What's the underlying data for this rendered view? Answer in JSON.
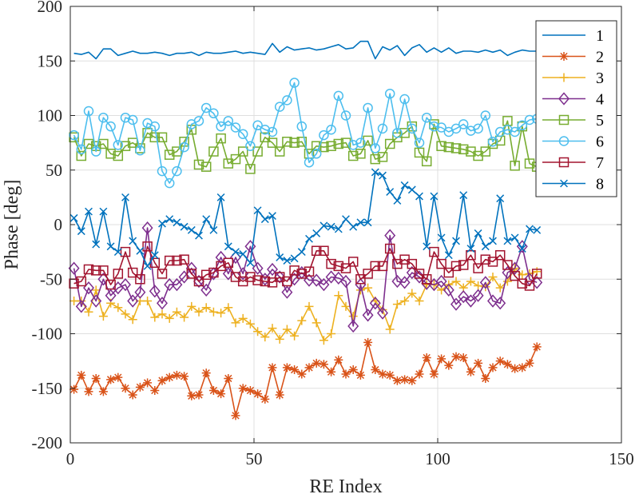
{
  "chart_data": {
    "type": "line",
    "title": "",
    "xlabel": "RE Index",
    "ylabel": "Phase [deg]",
    "xlim": [
      0,
      150
    ],
    "ylim": [
      -200,
      200
    ],
    "xticks": [
      0,
      50,
      100,
      150
    ],
    "yticks": [
      -200,
      -150,
      -100,
      -50,
      0,
      50,
      100,
      150,
      200
    ],
    "grid": true,
    "legend_position": "top-right",
    "series": [
      {
        "name": "1",
        "color": "#0072BD",
        "marker": "none",
        "x": [
          1,
          3,
          5,
          7,
          9,
          11,
          13,
          15,
          17,
          19,
          21,
          23,
          25,
          27,
          29,
          31,
          33,
          35,
          37,
          39,
          41,
          43,
          45,
          47,
          49,
          51,
          53,
          55,
          57,
          59,
          61,
          63,
          65,
          67,
          69,
          71,
          73,
          75,
          77,
          79,
          81,
          83,
          85,
          87,
          89,
          91,
          93,
          95,
          97,
          99,
          101,
          103,
          105,
          107,
          109,
          111,
          113,
          115,
          117,
          119,
          121,
          123,
          125,
          127
        ],
        "values": [
          157,
          156,
          158,
          152,
          161,
          161,
          155,
          157,
          159,
          157,
          157,
          158,
          157,
          155,
          157,
          157,
          158,
          155,
          158,
          157,
          157,
          158,
          159,
          157,
          158,
          157,
          156,
          166,
          158,
          163,
          160,
          161,
          162,
          160,
          161,
          163,
          165,
          161,
          162,
          168,
          168,
          152,
          163,
          160,
          164,
          155,
          162,
          165,
          158,
          162,
          158,
          162,
          157,
          159,
          159,
          158,
          160,
          158,
          160,
          155,
          158,
          160,
          159,
          159
        ]
      },
      {
        "name": "2",
        "color": "#D95319",
        "marker": "asterisk",
        "x": [
          1,
          3,
          5,
          7,
          9,
          11,
          13,
          15,
          17,
          19,
          21,
          23,
          25,
          27,
          29,
          31,
          33,
          35,
          37,
          39,
          41,
          43,
          45,
          47,
          49,
          51,
          53,
          55,
          57,
          59,
          61,
          63,
          65,
          67,
          69,
          71,
          73,
          75,
          77,
          79,
          81,
          83,
          85,
          87,
          89,
          91,
          93,
          95,
          97,
          99,
          101,
          103,
          105,
          107,
          109,
          111,
          113,
          115,
          117,
          119,
          121,
          123,
          125,
          127
        ],
        "values": [
          -151,
          -138,
          -153,
          -141,
          -153,
          -142,
          -140,
          -150,
          -156,
          -149,
          -145,
          -152,
          -143,
          -140,
          -138,
          -139,
          -157,
          -156,
          -136,
          -152,
          -155,
          -141,
          -175,
          -150,
          -152,
          -155,
          -160,
          -131,
          -156,
          -131,
          -133,
          -137,
          -131,
          -127,
          -128,
          -135,
          -124,
          -137,
          -133,
          -138,
          -108,
          -133,
          -137,
          -138,
          -143,
          -142,
          -143,
          -137,
          -122,
          -137,
          -123,
          -129,
          -121,
          -122,
          -135,
          -127,
          -141,
          -131,
          -125,
          -128,
          -132,
          -131,
          -127,
          -112
        ]
      },
      {
        "name": "3",
        "color": "#EDB120",
        "marker": "plus",
        "x": [
          1,
          3,
          5,
          7,
          9,
          11,
          13,
          15,
          17,
          19,
          21,
          23,
          25,
          27,
          29,
          31,
          33,
          35,
          37,
          39,
          41,
          43,
          45,
          47,
          49,
          51,
          53,
          55,
          57,
          59,
          61,
          63,
          65,
          67,
          69,
          71,
          73,
          75,
          77,
          79,
          81,
          83,
          85,
          87,
          89,
          91,
          93,
          95,
          97,
          99,
          101,
          103,
          105,
          107,
          109,
          111,
          113,
          115,
          117,
          119,
          121,
          123,
          125,
          127
        ],
        "values": [
          -70,
          -70,
          -80,
          -60,
          -84,
          -72,
          -76,
          -82,
          -87,
          -70,
          -70,
          -85,
          -82,
          -86,
          -80,
          -85,
          -75,
          -80,
          -76,
          -80,
          -81,
          -76,
          -90,
          -86,
          -91,
          -98,
          -103,
          -95,
          -105,
          -96,
          -102,
          -88,
          -75,
          -90,
          -106,
          -100,
          -65,
          -75,
          -84,
          -60,
          -58,
          -70,
          -78,
          -96,
          -73,
          -70,
          -63,
          -70,
          -55,
          -55,
          -60,
          -55,
          -52,
          -58,
          -52,
          -56,
          -57,
          -48,
          -58,
          -52,
          -40,
          -46,
          -45,
          -43
        ]
      },
      {
        "name": "4",
        "color": "#7E2F8E",
        "marker": "diamond",
        "x": [
          1,
          3,
          5,
          7,
          9,
          11,
          13,
          15,
          17,
          19,
          21,
          23,
          25,
          27,
          29,
          31,
          33,
          35,
          37,
          39,
          41,
          43,
          45,
          47,
          49,
          51,
          53,
          55,
          57,
          59,
          61,
          63,
          65,
          67,
          69,
          71,
          73,
          75,
          77,
          79,
          81,
          83,
          85,
          87,
          89,
          91,
          93,
          95,
          97,
          99,
          101,
          103,
          105,
          107,
          109,
          111,
          113,
          115,
          117,
          119,
          121,
          123,
          125,
          127
        ],
        "values": [
          -40,
          -75,
          -58,
          -70,
          -50,
          -65,
          -58,
          -55,
          -70,
          -62,
          -3,
          -61,
          -72,
          -55,
          -55,
          -48,
          -40,
          -52,
          -60,
          -45,
          -30,
          -45,
          -30,
          -45,
          -20,
          -40,
          -50,
          -41,
          -48,
          -62,
          -50,
          -44,
          -51,
          -51,
          -55,
          -48,
          -49,
          -52,
          -93,
          -55,
          -83,
          -72,
          -81,
          -10,
          -52,
          -53,
          -44,
          -48,
          -54,
          -55,
          -52,
          -60,
          -73,
          -66,
          -70,
          -65,
          -53,
          -70,
          -72,
          -44,
          -40,
          -20,
          -50,
          -53
        ]
      },
      {
        "name": "5",
        "color": "#77AC30",
        "marker": "square",
        "x": [
          1,
          3,
          5,
          7,
          9,
          11,
          13,
          15,
          17,
          19,
          21,
          23,
          25,
          27,
          29,
          31,
          33,
          35,
          37,
          39,
          41,
          43,
          45,
          47,
          49,
          51,
          53,
          55,
          57,
          59,
          61,
          63,
          65,
          67,
          69,
          71,
          73,
          75,
          77,
          79,
          81,
          83,
          85,
          87,
          89,
          91,
          93,
          95,
          97,
          99,
          101,
          103,
          105,
          107,
          109,
          111,
          113,
          115,
          117,
          119,
          121,
          123,
          125,
          127
        ],
        "values": [
          80,
          63,
          74,
          72,
          74,
          65,
          63,
          72,
          75,
          70,
          84,
          80,
          80,
          64,
          67,
          76,
          87,
          55,
          53,
          67,
          79,
          56,
          60,
          67,
          51,
          67,
          80,
          75,
          67,
          76,
          75,
          76,
          65,
          72,
          71,
          72,
          74,
          75,
          63,
          65,
          77,
          60,
          62,
          74,
          80,
          84,
          90,
          66,
          58,
          92,
          72,
          71,
          70,
          69,
          67,
          63,
          67,
          74,
          77,
          95,
          54,
          90,
          56,
          53
        ]
      },
      {
        "name": "6",
        "color": "#4DBEEE",
        "marker": "circle",
        "x": [
          1,
          3,
          5,
          7,
          9,
          11,
          13,
          15,
          17,
          19,
          21,
          23,
          25,
          27,
          29,
          31,
          33,
          35,
          37,
          39,
          41,
          43,
          45,
          47,
          49,
          51,
          53,
          55,
          57,
          59,
          61,
          63,
          65,
          67,
          69,
          71,
          73,
          75,
          77,
          79,
          81,
          83,
          85,
          87,
          89,
          91,
          93,
          95,
          97,
          99,
          101,
          103,
          105,
          107,
          109,
          111,
          113,
          115,
          117,
          119,
          121,
          123,
          125,
          127
        ],
        "values": [
          82,
          69,
          104,
          67,
          98,
          90,
          73,
          98,
          96,
          68,
          93,
          90,
          49,
          38,
          49,
          71,
          92,
          95,
          107,
          102,
          90,
          95,
          89,
          83,
          72,
          91,
          87,
          85,
          108,
          114,
          130,
          90,
          57,
          65,
          82,
          87,
          118,
          100,
          73,
          75,
          107,
          70,
          88,
          120,
          84,
          115,
          88,
          75,
          98,
          90,
          89,
          85,
          88,
          92,
          86,
          88,
          100,
          76,
          85,
          87,
          85,
          91,
          96,
          97
        ]
      },
      {
        "name": "7",
        "color": "#A2142F",
        "marker": "square",
        "x": [
          1,
          3,
          5,
          7,
          9,
          11,
          13,
          15,
          17,
          19,
          21,
          23,
          25,
          27,
          29,
          31,
          33,
          35,
          37,
          39,
          41,
          43,
          45,
          47,
          49,
          51,
          53,
          55,
          57,
          59,
          61,
          63,
          65,
          67,
          69,
          71,
          73,
          75,
          77,
          79,
          81,
          83,
          85,
          87,
          89,
          91,
          93,
          95,
          97,
          99,
          101,
          103,
          105,
          107,
          109,
          111,
          113,
          115,
          117,
          119,
          121,
          123,
          125,
          127
        ],
        "values": [
          -54,
          -52,
          -41,
          -42,
          -42,
          -55,
          -45,
          -25,
          -44,
          -50,
          -20,
          -35,
          -45,
          -33,
          -33,
          -32,
          -45,
          -52,
          -46,
          -44,
          -38,
          -35,
          -48,
          -52,
          -48,
          -51,
          -52,
          -53,
          -48,
          -52,
          -42,
          -45,
          -43,
          -24,
          -24,
          -36,
          -38,
          -40,
          -34,
          -50,
          -45,
          -38,
          -38,
          -22,
          -36,
          -32,
          -36,
          -45,
          -50,
          -25,
          -36,
          -44,
          -38,
          -37,
          -28,
          -40,
          -32,
          -34,
          -28,
          -37,
          -47,
          -54,
          -56,
          -45
        ]
      },
      {
        "name": "8",
        "color": "#0072BD",
        "marker": "x",
        "x": [
          1,
          3,
          5,
          7,
          9,
          11,
          13,
          15,
          17,
          19,
          21,
          23,
          25,
          27,
          29,
          31,
          33,
          35,
          37,
          39,
          41,
          43,
          45,
          47,
          49,
          51,
          53,
          55,
          57,
          59,
          61,
          63,
          65,
          67,
          69,
          71,
          73,
          75,
          77,
          79,
          81,
          83,
          85,
          87,
          89,
          91,
          93,
          95,
          97,
          99,
          101,
          103,
          105,
          107,
          109,
          111,
          113,
          115,
          117,
          119,
          121,
          123,
          125,
          127
        ],
        "values": [
          6,
          -6,
          12,
          -18,
          12,
          -20,
          -25,
          25,
          -15,
          -24,
          -38,
          -28,
          1,
          5,
          2,
          -2,
          -5,
          -10,
          5,
          -5,
          25,
          -20,
          -25,
          -27,
          -35,
          13,
          5,
          8,
          -30,
          -33,
          -31,
          -25,
          -13,
          -8,
          -1,
          -2,
          -4,
          5,
          -2,
          2,
          2,
          48,
          45,
          30,
          22,
          36,
          32,
          26,
          -20,
          26,
          -12,
          -28,
          -15,
          27,
          -22,
          -8,
          -20,
          -15,
          24,
          -15,
          -12,
          -22,
          -4,
          -5
        ]
      }
    ]
  }
}
